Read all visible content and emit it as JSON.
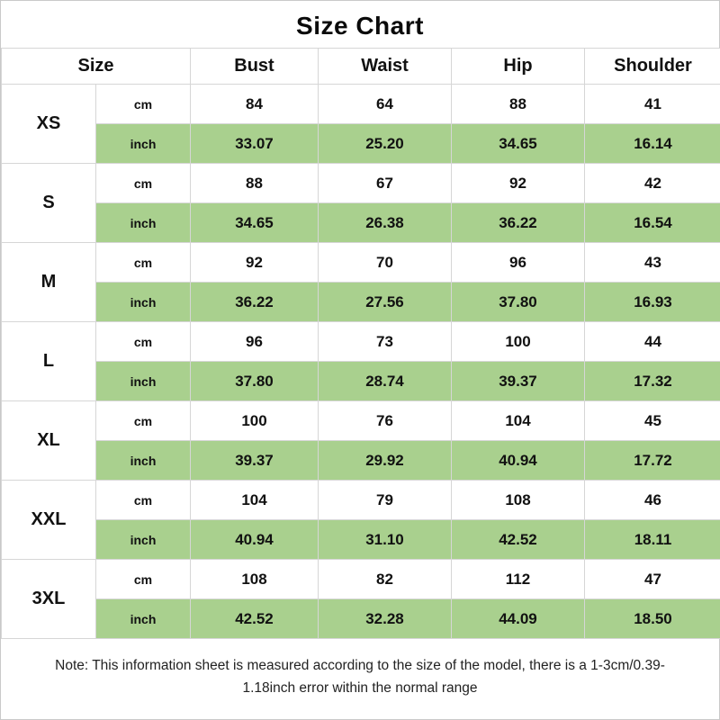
{
  "title": "Size Chart",
  "chart_data": {
    "type": "table",
    "title": "Size Chart",
    "columns": [
      "Size",
      "Bust",
      "Waist",
      "Hip",
      "Shoulder"
    ],
    "measure_columns": [
      "Bust",
      "Waist",
      "Hip",
      "Shoulder"
    ],
    "units": [
      "cm",
      "inch"
    ],
    "rows": [
      {
        "size": "XS",
        "cm": [
          "84",
          "64",
          "88",
          "41"
        ],
        "inch": [
          "33.07",
          "25.20",
          "34.65",
          "16.14"
        ]
      },
      {
        "size": "S",
        "cm": [
          "88",
          "67",
          "92",
          "42"
        ],
        "inch": [
          "34.65",
          "26.38",
          "36.22",
          "16.54"
        ]
      },
      {
        "size": "M",
        "cm": [
          "92",
          "70",
          "96",
          "43"
        ],
        "inch": [
          "36.22",
          "27.56",
          "37.80",
          "16.93"
        ]
      },
      {
        "size": "L",
        "cm": [
          "96",
          "73",
          "100",
          "44"
        ],
        "inch": [
          "37.80",
          "28.74",
          "39.37",
          "17.32"
        ]
      },
      {
        "size": "XL",
        "cm": [
          "100",
          "76",
          "104",
          "45"
        ],
        "inch": [
          "39.37",
          "29.92",
          "40.94",
          "17.72"
        ]
      },
      {
        "size": "XXL",
        "cm": [
          "104",
          "79",
          "108",
          "46"
        ],
        "inch": [
          "40.94",
          "31.10",
          "42.52",
          "18.11"
        ]
      },
      {
        "size": "3XL",
        "cm": [
          "108",
          "82",
          "112",
          "47"
        ],
        "inch": [
          "42.52",
          "32.28",
          "44.09",
          "18.50"
        ]
      }
    ],
    "layout_hints": {
      "highlighted_rows": "inch",
      "grid": true
    }
  },
  "note": {
    "text": "Note: This information sheet is measured according to the size of the model, there is a 1-3cm/0.39-1.18inch error within the normal range"
  },
  "colors": {
    "highlight_green": "#a9d08e",
    "border": "#d6d6d6",
    "text": "#111111",
    "background": "#ffffff"
  }
}
